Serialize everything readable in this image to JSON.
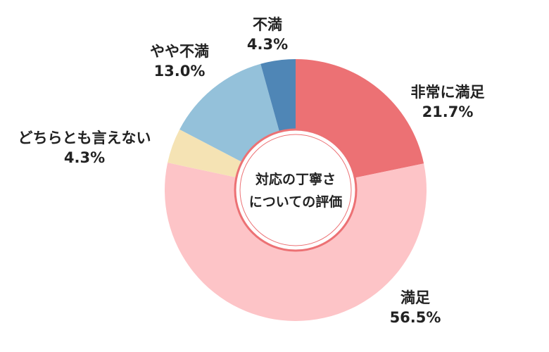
{
  "chart_data": {
    "type": "pie",
    "variant": "donut",
    "center_text": [
      "対応の丁寧さ",
      "についての評価"
    ],
    "slices": [
      {
        "label": "非常に満足",
        "value": 21.7,
        "value_label": "21.7%",
        "color": "#ec7174"
      },
      {
        "label": "満足",
        "value": 56.5,
        "value_label": "56.5%",
        "color": "#fdc4c7"
      },
      {
        "label": "どちらとも言えない",
        "value": 4.3,
        "value_label": "4.3%",
        "color": "#f5e3b4"
      },
      {
        "label": "やや不満",
        "value": 13.0,
        "value_label": "13.0%",
        "color": "#94c1da"
      },
      {
        "label": "不満",
        "value": 4.3,
        "value_label": "4.3%",
        "color": "#4f86b6"
      }
    ],
    "start_angle": "top",
    "direction": "clockwise"
  }
}
